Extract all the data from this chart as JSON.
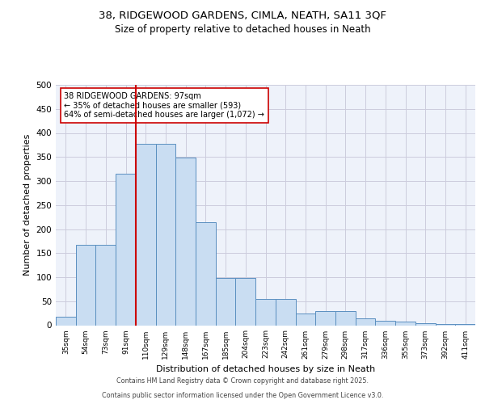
{
  "title_line1": "38, RIDGEWOOD GARDENS, CIMLA, NEATH, SA11 3QF",
  "title_line2": "Size of property relative to detached houses in Neath",
  "xlabel": "Distribution of detached houses by size in Neath",
  "ylabel": "Number of detached properties",
  "bin_labels": [
    "35sqm",
    "54sqm",
    "73sqm",
    "91sqm",
    "110sqm",
    "129sqm",
    "148sqm",
    "167sqm",
    "185sqm",
    "204sqm",
    "223sqm",
    "242sqm",
    "261sqm",
    "279sqm",
    "298sqm",
    "317sqm",
    "336sqm",
    "355sqm",
    "373sqm",
    "392sqm",
    "411sqm"
  ],
  "bar_heights": [
    18,
    167,
    167,
    315,
    378,
    378,
    348,
    215,
    98,
    98,
    55,
    55,
    25,
    30,
    30,
    14,
    10,
    8,
    5,
    3,
    3
  ],
  "bar_color": "#c9ddf2",
  "bar_edge_color": "#5a8fc0",
  "vline_color": "#cc0000",
  "annotation_text": "38 RIDGEWOOD GARDENS: 97sqm\n← 35% of detached houses are smaller (593)\n64% of semi-detached houses are larger (1,072) →",
  "annotation_box_color": "#ffffff",
  "annotation_box_edge": "#cc0000",
  "ylim": [
    0,
    500
  ],
  "yticks": [
    0,
    50,
    100,
    150,
    200,
    250,
    300,
    350,
    400,
    450,
    500
  ],
  "grid_color": "#ccccdd",
  "background_color": "#eef2fa",
  "footer_line1": "Contains HM Land Registry data © Crown copyright and database right 2025.",
  "footer_line2": "Contains public sector information licensed under the Open Government Licence v3.0."
}
